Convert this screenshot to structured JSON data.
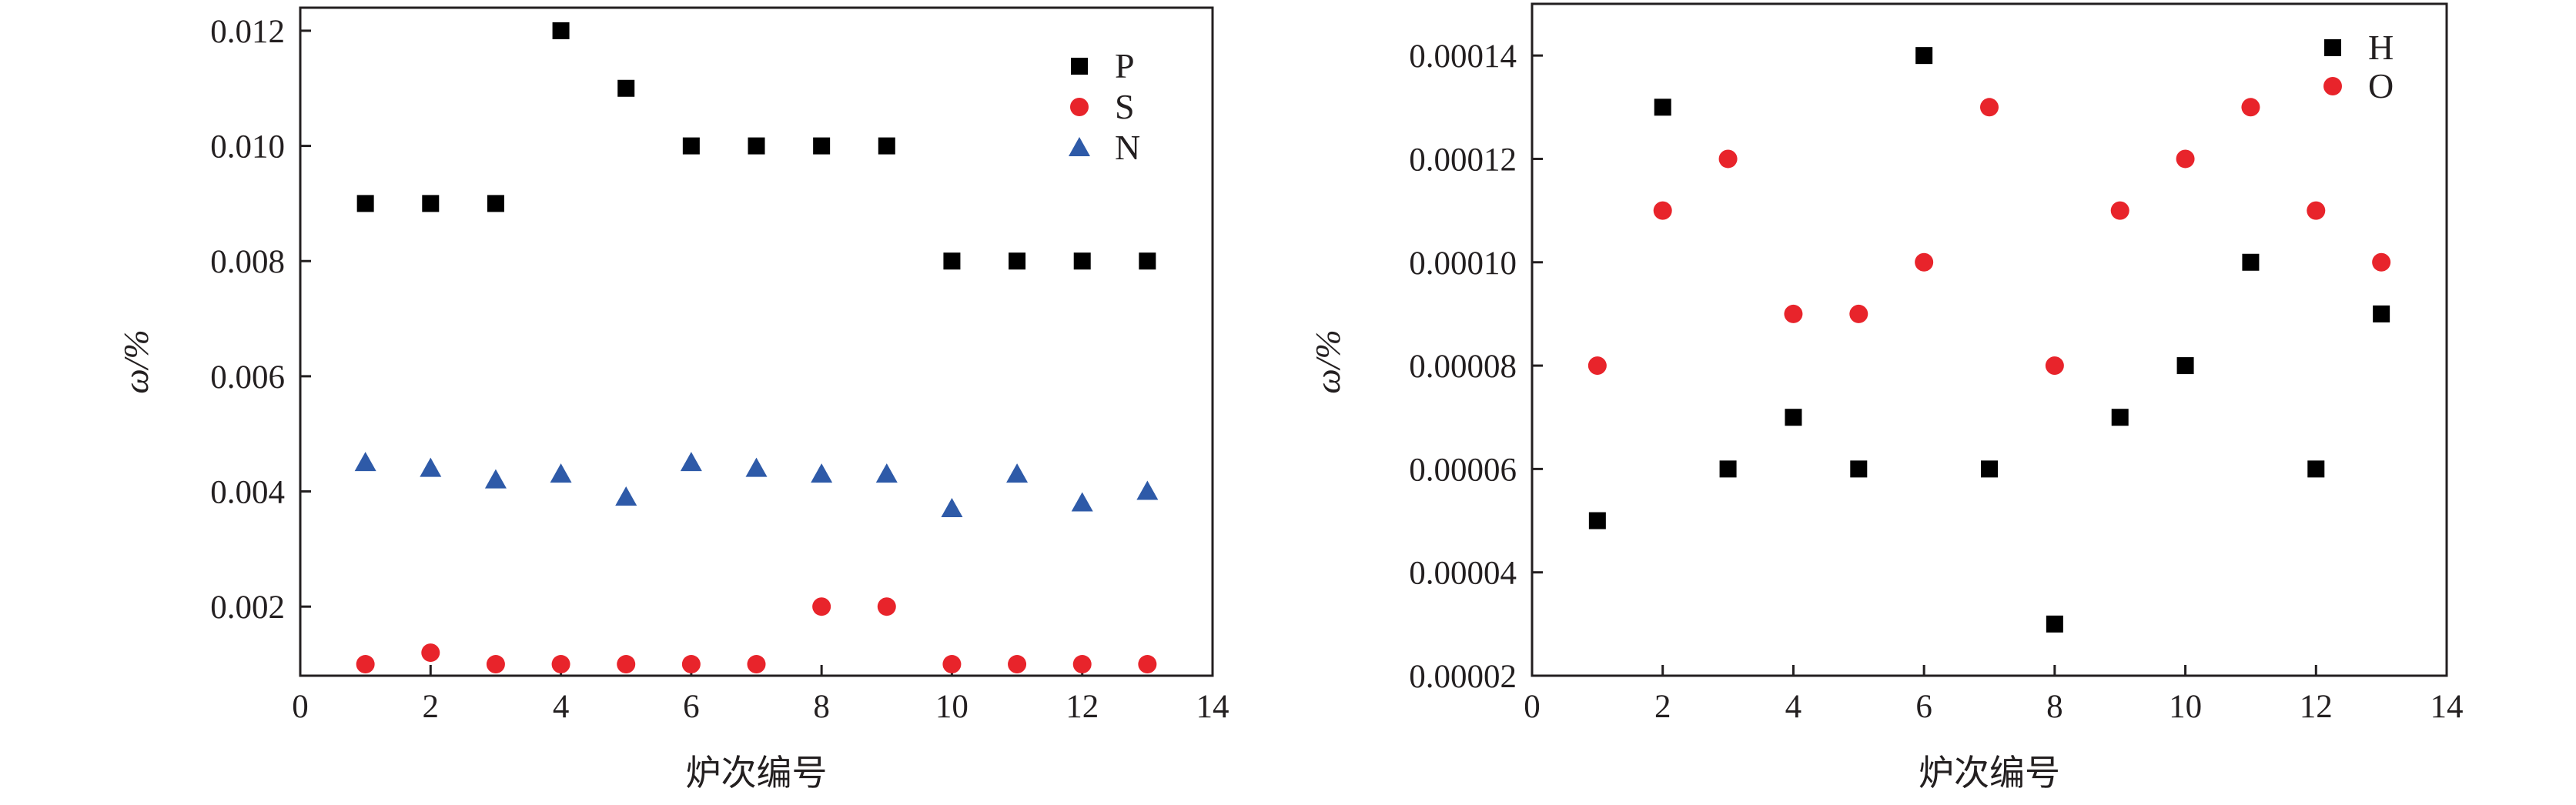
{
  "chart_data": [
    {
      "type": "scatter",
      "xlabel": "炉次编号",
      "ylabel": "ω/%",
      "xlim": [
        0,
        14
      ],
      "ylim": [
        0.0008,
        0.0124
      ],
      "xticks": [
        "0",
        "2",
        "4",
        "6",
        "8",
        "10",
        "12",
        "14"
      ],
      "xtick_values": [
        0,
        2,
        4,
        6,
        8,
        10,
        12,
        14
      ],
      "yticks": [
        "0.002",
        "0.004",
        "0.006",
        "0.008",
        "0.010",
        "0.012"
      ],
      "ytick_values": [
        0.002,
        0.004,
        0.006,
        0.008,
        0.01,
        0.012
      ],
      "legend_position": "top-right",
      "grid": false,
      "series": [
        {
          "name": "P",
          "marker": "square",
          "color": "#000000",
          "x": [
            1,
            2,
            3,
            4,
            5,
            6,
            7,
            8,
            9,
            10,
            11,
            12,
            13
          ],
          "y": [
            0.009,
            0.009,
            0.009,
            0.012,
            0.011,
            0.01,
            0.01,
            0.01,
            0.01,
            0.008,
            0.008,
            0.008,
            0.008
          ]
        },
        {
          "name": "S",
          "marker": "circle",
          "color": "#e8242b",
          "x": [
            1,
            2,
            3,
            4,
            5,
            6,
            7,
            8,
            9,
            10,
            11,
            12,
            13
          ],
          "y": [
            0.001,
            0.0012,
            0.001,
            0.001,
            0.001,
            0.001,
            0.001,
            0.002,
            0.002,
            0.001,
            0.001,
            0.001,
            0.001
          ]
        },
        {
          "name": "N",
          "marker": "triangle",
          "color": "#2e5aa8",
          "x": [
            1,
            2,
            3,
            4,
            5,
            6,
            7,
            8,
            9,
            10,
            11,
            12,
            13
          ],
          "y": [
            0.0045,
            0.0044,
            0.0042,
            0.0043,
            0.0039,
            0.0045,
            0.0044,
            0.0043,
            0.0043,
            0.0037,
            0.0043,
            0.0038,
            0.004
          ]
        }
      ]
    },
    {
      "type": "scatter",
      "xlabel": "炉次编号",
      "ylabel": "ω/%",
      "xlim": [
        0,
        14
      ],
      "ylim": [
        2e-05,
        0.00015
      ],
      "xticks": [
        "0",
        "2",
        "4",
        "6",
        "8",
        "10",
        "12",
        "14"
      ],
      "xtick_values": [
        0,
        2,
        4,
        6,
        8,
        10,
        12,
        14
      ],
      "yticks": [
        "0.00002",
        "0.00004",
        "0.00006",
        "0.00008",
        "0.00010",
        "0.00012",
        "0.00014"
      ],
      "ytick_values": [
        2e-05,
        4e-05,
        6e-05,
        8e-05,
        0.0001,
        0.00012,
        0.00014
      ],
      "legend_position": "top-right",
      "grid": false,
      "series": [
        {
          "name": "H",
          "marker": "square",
          "color": "#000000",
          "x": [
            1,
            2,
            3,
            4,
            5,
            6,
            7,
            8,
            9,
            10,
            11,
            12,
            13
          ],
          "y": [
            5e-05,
            0.00013,
            6e-05,
            7e-05,
            6e-05,
            0.00014,
            6e-05,
            3e-05,
            7e-05,
            8e-05,
            0.0001,
            6e-05,
            9e-05
          ]
        },
        {
          "name": "O",
          "marker": "circle",
          "color": "#e8242b",
          "x": [
            1,
            2,
            3,
            4,
            5,
            6,
            7,
            8,
            9,
            10,
            11,
            12,
            13
          ],
          "y": [
            8e-05,
            0.00011,
            0.00012,
            9e-05,
            9e-05,
            0.0001,
            0.00013,
            8e-05,
            0.00011,
            0.00012,
            0.00013,
            0.00011,
            0.0001
          ]
        }
      ]
    }
  ]
}
